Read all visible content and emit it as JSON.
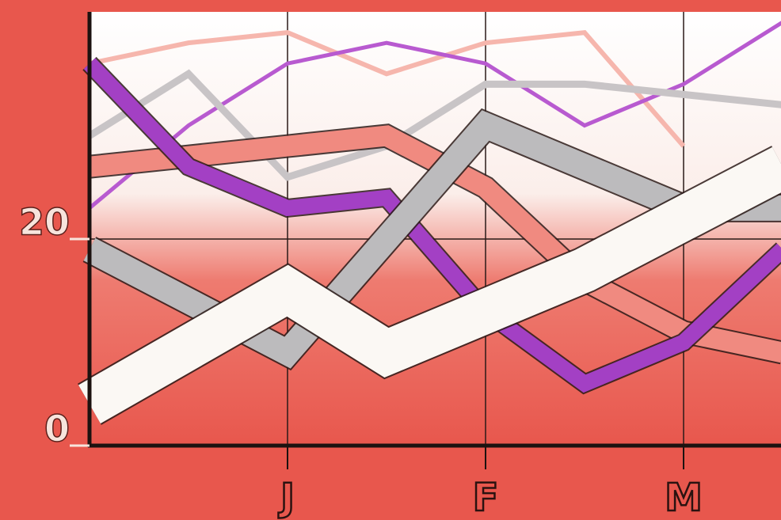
{
  "chart_data": {
    "type": "line",
    "categories": [
      null,
      null,
      "J",
      null,
      "F",
      null,
      "M",
      null
    ],
    "ylim": [
      0,
      42
    ],
    "yticks": [
      0,
      20
    ],
    "grid": true,
    "series": [
      {
        "color": "#f6b6ad",
        "values": [
          37,
          39,
          40,
          36,
          39,
          40,
          29,
          null
        ]
      },
      {
        "color": "#b85ad0",
        "values": [
          23,
          31,
          37,
          39,
          37,
          31,
          35,
          41
        ]
      },
      {
        "color": "#c8c4c6",
        "values": [
          30,
          36,
          26,
          29,
          35,
          35,
          34,
          33
        ]
      },
      {
        "color": "#f08a80",
        "values": [
          27,
          28,
          29,
          30,
          25,
          16,
          11,
          9
        ]
      },
      {
        "color": "#a340c4",
        "values": [
          37,
          27,
          23,
          24,
          13,
          6,
          10,
          19
        ]
      },
      {
        "color": "#bcbbbd",
        "values": [
          19,
          14,
          9,
          20,
          31,
          27,
          23,
          23
        ]
      },
      {
        "color": "#fbf8f4",
        "values": [
          4,
          9.5,
          15,
          9,
          13,
          17,
          22,
          27
        ]
      }
    ]
  }
}
